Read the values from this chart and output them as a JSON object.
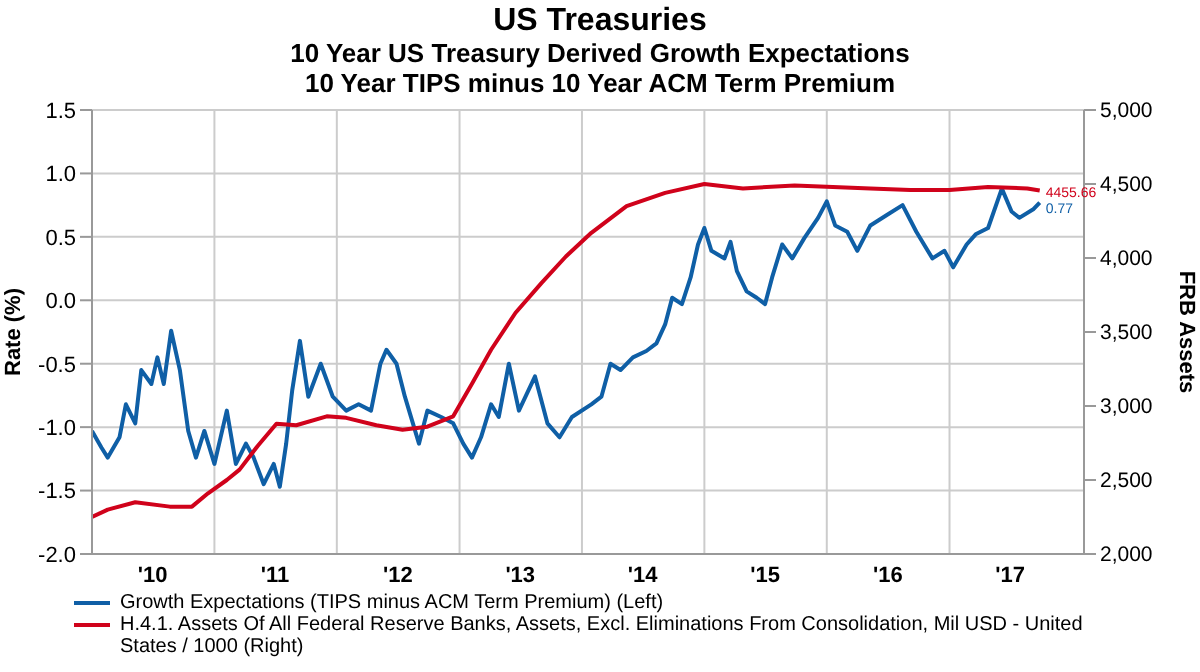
{
  "chart_data": {
    "type": "line",
    "title": "US Treasuries",
    "subtitle": "10 Year US Treasury Derived Growth Expectations\n10 Year TIPS minus 10 Year ACM Term Premium",
    "ylabel": "Rate (%)",
    "y2label": "FRB Assets",
    "xlim": [
      "2010-01-01",
      "2018-02-06"
    ],
    "xticks": [
      {
        "value": "2010-01-01",
        "label": null
      },
      {
        "value": "2010-07-01",
        "label": "'10"
      },
      {
        "value": "2011-01-01",
        "label": null
      },
      {
        "value": "2011-07-01",
        "label": "'11"
      },
      {
        "value": "2012-01-01",
        "label": null
      },
      {
        "value": "2012-07-01",
        "label": "'12"
      },
      {
        "value": "2013-01-01",
        "label": null
      },
      {
        "value": "2013-07-01",
        "label": "'13"
      },
      {
        "value": "2014-01-01",
        "label": null
      },
      {
        "value": "2014-07-01",
        "label": "'14"
      },
      {
        "value": "2015-01-01",
        "label": null
      },
      {
        "value": "2015-07-01",
        "label": "'15"
      },
      {
        "value": "2016-01-01",
        "label": null
      },
      {
        "value": "2016-07-01",
        "label": "'16"
      },
      {
        "value": "2017-01-01",
        "label": null
      },
      {
        "value": "2017-07-01",
        "label": "'17"
      }
    ],
    "ylim": [
      -2,
      1.5
    ],
    "yticks": [
      {
        "value": -2,
        "label": "-2.0"
      },
      {
        "value": -1.5,
        "label": "-1.5"
      },
      {
        "value": -1,
        "label": "-1.0"
      },
      {
        "value": -0.5,
        "label": "-0.5"
      },
      {
        "value": 0,
        "label": "0.0"
      },
      {
        "value": 0.5,
        "label": "0.5"
      },
      {
        "value": 1,
        "label": "1.0"
      },
      {
        "value": 1.5,
        "label": "1.5"
      }
    ],
    "y2lim": [
      2000,
      5000
    ],
    "y2ticks": [
      {
        "value": 2000,
        "label": "2,000"
      },
      {
        "value": 2500,
        "label": "2,500"
      },
      {
        "value": 3000,
        "label": "3,000"
      },
      {
        "value": 3500,
        "label": "3,500"
      },
      {
        "value": 4000,
        "label": "4,000"
      },
      {
        "value": 4500,
        "label": "4,500"
      },
      {
        "value": 5000,
        "label": "5,000"
      }
    ],
    "grid": true,
    "legend": "bottom",
    "marker": "none",
    "line_style": "solid",
    "series": [
      {
        "name": "Growth Expectations (TIPS minus ACM Term Premium)  (Left)",
        "color": "#0f5fa6",
        "axis": "y",
        "x": [
          "2010-01-01",
          "2010-01-29",
          "2010-02-17",
          "2010-03-24",
          "2010-04-12",
          "2010-05-10",
          "2010-05-28",
          "2010-06-27",
          "2010-07-15",
          "2010-08-03",
          "2010-08-25",
          "2010-09-20",
          "2010-10-15",
          "2010-11-07",
          "2010-12-02",
          "2011-01-01",
          "2011-02-07",
          "2011-03-06",
          "2011-04-05",
          "2011-04-28",
          "2011-05-28",
          "2011-06-27",
          "2011-07-15",
          "2011-08-03",
          "2011-08-21",
          "2011-09-13",
          "2011-10-08",
          "2011-11-14",
          "2011-12-20",
          "2012-01-29",
          "2012-03-06",
          "2012-04-12",
          "2012-05-10",
          "2012-05-28",
          "2012-06-27",
          "2012-07-22",
          "2012-09-02",
          "2012-09-27",
          "2012-11-07",
          "2012-12-13",
          "2013-01-12",
          "2013-02-07",
          "2013-03-06",
          "2013-04-05",
          "2013-04-28",
          "2013-05-28",
          "2013-06-27",
          "2013-08-14",
          "2013-09-20",
          "2013-10-26",
          "2013-12-02",
          "2014-01-29",
          "2014-02-28",
          "2014-03-27",
          "2014-04-26",
          "2014-06-02",
          "2014-07-12",
          "2014-08-11",
          "2014-09-06",
          "2014-09-27",
          "2014-10-26",
          "2014-11-21",
          "2014-12-13",
          "2015-01-01",
          "2015-01-22",
          "2015-03-02",
          "2015-03-20",
          "2015-04-08",
          "2015-05-07",
          "2015-06-06",
          "2015-07-01",
          "2015-07-22",
          "2015-08-21",
          "2015-09-20",
          "2015-10-26",
          "2015-12-06",
          "2016-01-01",
          "2016-01-26",
          "2016-03-02",
          "2016-04-01",
          "2016-05-10",
          "2016-06-27",
          "2016-08-14",
          "2016-09-24",
          "2016-11-11",
          "2016-12-17",
          "2017-01-12",
          "2017-02-21",
          "2017-03-20",
          "2017-04-26",
          "2017-06-06",
          "2017-07-05",
          "2017-07-28",
          "2017-09-09",
          "2017-09-27"
        ],
        "values": [
          -1.03,
          -1.16,
          -1.24,
          -1.08,
          -0.82,
          -0.97,
          -0.55,
          -0.66,
          -0.45,
          -0.66,
          -0.24,
          -0.55,
          -1.03,
          -1.24,
          -1.03,
          -1.29,
          -0.87,
          -1.29,
          -1.13,
          -1.24,
          -1.45,
          -1.29,
          -1.47,
          -1.13,
          -0.71,
          -0.32,
          -0.76,
          -0.5,
          -0.76,
          -0.87,
          -0.82,
          -0.87,
          -0.5,
          -0.39,
          -0.5,
          -0.76,
          -1.13,
          -0.87,
          -0.92,
          -0.97,
          -1.13,
          -1.24,
          -1.08,
          -0.82,
          -0.92,
          -0.5,
          -0.87,
          -0.6,
          -0.97,
          -1.08,
          -0.92,
          -0.82,
          -0.76,
          -0.5,
          -0.55,
          -0.45,
          -0.4,
          -0.34,
          -0.19,
          0.02,
          -0.03,
          0.18,
          0.44,
          0.57,
          0.39,
          0.33,
          0.46,
          0.23,
          0.07,
          0.02,
          -0.03,
          0.18,
          0.44,
          0.33,
          0.49,
          0.65,
          0.78,
          0.59,
          0.54,
          0.39,
          0.59,
          0.67,
          0.75,
          0.54,
          0.33,
          0.39,
          0.26,
          0.44,
          0.52,
          0.57,
          0.88,
          0.7,
          0.65,
          0.72,
          0.77
        ],
        "value_labels": [
          null,
          null,
          null,
          null,
          null,
          null,
          null,
          null,
          null,
          null,
          null,
          null,
          null,
          null,
          null,
          null,
          null,
          null,
          null,
          null,
          null,
          null,
          null,
          null,
          null,
          null,
          null,
          null,
          null,
          null,
          null,
          null,
          null,
          null,
          null,
          null,
          null,
          null,
          null,
          null,
          null,
          null,
          null,
          null,
          null,
          null,
          null,
          null,
          null,
          null,
          null,
          null,
          null,
          null,
          null,
          null,
          null,
          null,
          null,
          null,
          null,
          null,
          null,
          null,
          null,
          null,
          null,
          null,
          null,
          null,
          null,
          null,
          null,
          null,
          null,
          null,
          null,
          null,
          null,
          null,
          null,
          null,
          null,
          null,
          null,
          null,
          null,
          null,
          null,
          null,
          null,
          null,
          null,
          null,
          "0.77"
        ]
      },
      {
        "name": "H.4.1. Assets Of All Federal Reserve Banks, Assets, Excl. Eliminations From Consolidation, Mil USD - United States / 1000  (Right)",
        "color": "#d0021b",
        "axis": "y2",
        "x": [
          "2010-01-01",
          "2010-02-17",
          "2010-05-10",
          "2010-08-21",
          "2010-10-26",
          "2010-12-13",
          "2011-02-07",
          "2011-03-17",
          "2011-05-10",
          "2011-07-05",
          "2011-09-02",
          "2011-12-02",
          "2012-01-29",
          "2012-04-28",
          "2012-07-15",
          "2012-09-27",
          "2012-12-13",
          "2013-02-07",
          "2013-04-05",
          "2013-06-17",
          "2013-09-02",
          "2013-11-14",
          "2014-01-29",
          "2014-05-14",
          "2014-09-06",
          "2015-01-01",
          "2015-04-26",
          "2015-09-27",
          "2016-01-19",
          "2016-05-10",
          "2016-09-06",
          "2017-01-01",
          "2017-04-26",
          "2017-08-21",
          "2017-09-27"
        ],
        "values": [
          2250,
          2300,
          2350,
          2320,
          2320,
          2410,
          2500,
          2570,
          2730,
          2880,
          2870,
          2930,
          2920,
          2870,
          2840,
          2860,
          2930,
          3150,
          3380,
          3630,
          3830,
          4010,
          4170,
          4350,
          4440,
          4500,
          4470,
          4490,
          4480,
          4470,
          4460,
          4460,
          4480,
          4470,
          4455.66
        ],
        "value_labels": [
          null,
          null,
          null,
          null,
          null,
          null,
          null,
          null,
          null,
          null,
          null,
          null,
          null,
          null,
          null,
          null,
          null,
          null,
          null,
          null,
          null,
          null,
          null,
          null,
          null,
          null,
          null,
          null,
          null,
          null,
          null,
          null,
          null,
          null,
          "4455.66"
        ]
      }
    ]
  }
}
